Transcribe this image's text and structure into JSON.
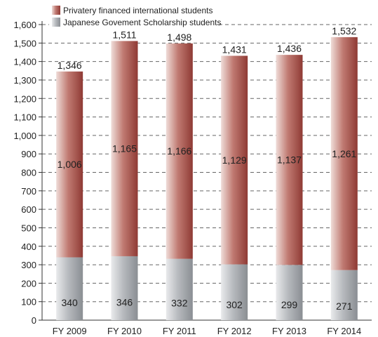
{
  "chart_data": {
    "type": "bar",
    "stacked": true,
    "categories": [
      "FY 2009",
      "FY 2010",
      "FY 2011",
      "FY 2012",
      "FY 2013",
      "FY 2014"
    ],
    "series": [
      {
        "name": "Japanese Govement Scholarship students",
        "values": [
          340,
          346,
          332,
          302,
          299,
          271
        ],
        "color": "#9a9ea3"
      },
      {
        "name": "Privatery financed international students",
        "values": [
          1006,
          1165,
          1166,
          1129,
          1137,
          1261
        ],
        "color": "#a8504a"
      }
    ],
    "totals": [
      1346,
      1511,
      1498,
      1431,
      1436,
      1532
    ],
    "total_labels": [
      "1,346",
      "1,511",
      "1,498",
      "1,431",
      "1,436",
      "1,532"
    ],
    "segment_labels": [
      [
        "340",
        "346",
        "332",
        "302",
        "299",
        "271"
      ],
      [
        "1,006",
        "1,165",
        "1,166",
        "1,129",
        "1,137",
        "1,261"
      ]
    ],
    "y_ticks": [
      0,
      100,
      200,
      300,
      400,
      500,
      600,
      700,
      800,
      900,
      1000,
      1100,
      1200,
      1300,
      1400,
      1500,
      1600
    ],
    "y_tick_labels": [
      "0",
      "100",
      "200",
      "300",
      "400",
      "500",
      "600",
      "700",
      "800",
      "900",
      "1,000",
      "1,100",
      "1,200",
      "1,300",
      "1,400",
      "1,500",
      "1,600"
    ],
    "ylim": [
      0,
      1600
    ],
    "grid": true,
    "legend_position": "top-left",
    "title": "",
    "xlabel": "",
    "ylabel": ""
  }
}
